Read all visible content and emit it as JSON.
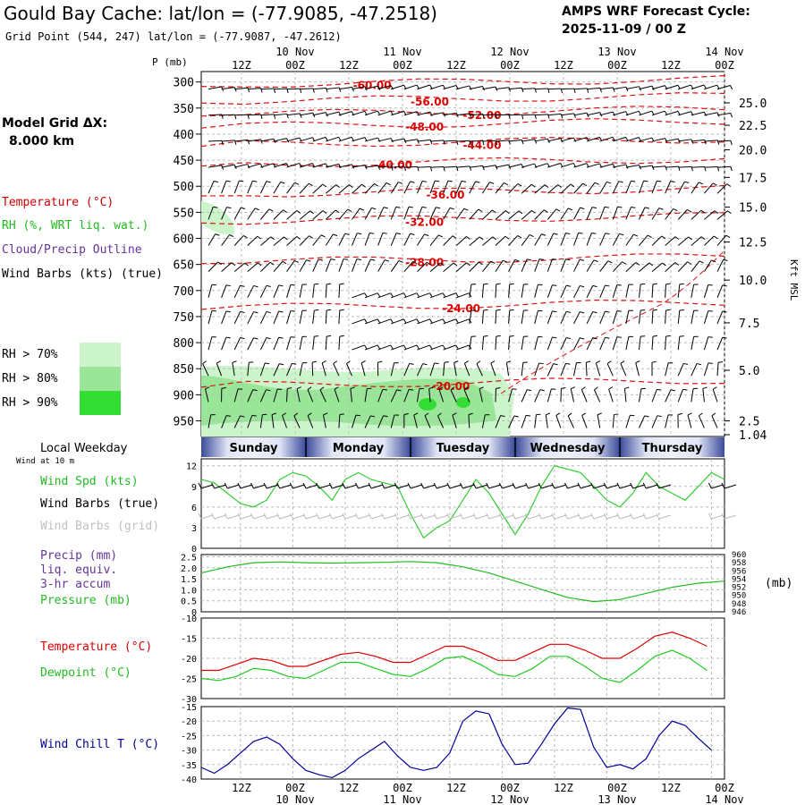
{
  "header": {
    "title": "Gould Bay Cache:  lat/lon = (-77.9085, -47.2518)",
    "subtitle": "Grid Point (544, 247) lat/lon = (-77.9087, -47.2612)",
    "forecast_cycle_label": "AMPS WRF Forecast Cycle:",
    "forecast_cycle_value": "2025-11-09 / 00  Z"
  },
  "legend": {
    "model_grid_label": "Model Grid ΔX:",
    "model_grid_value": "8.000 km",
    "temperature": "Temperature (°C)",
    "rh": "RH (%, WRT liq. wat.)",
    "cloud": "Cloud/Precip Outline",
    "wind_barbs": "Wind Barbs (kts) (true)",
    "rh70": "RH > 70%",
    "rh80": "RH > 80%",
    "rh90": "RH > 90%",
    "rh70_color": "#ccf5cc",
    "rh80_color": "#99e699",
    "rh90_color": "#33dd33"
  },
  "time_axis": {
    "labels": [
      "12Z",
      "00Z",
      "12Z",
      "00Z",
      "12Z",
      "00Z",
      "12Z",
      "00Z",
      "12Z",
      "00Z"
    ],
    "dates": [
      "10 Nov",
      "11 Nov",
      "12 Nov",
      "13 Nov",
      "14 Nov"
    ],
    "date_label_index": [
      1,
      3,
      5,
      7,
      9
    ]
  },
  "sounding": {
    "p_axis_label": "P (mb)",
    "kft_axis_label": "Kft MSL",
    "pressure_levels": [
      300,
      350,
      400,
      450,
      500,
      550,
      600,
      650,
      700,
      750,
      800,
      850,
      900,
      950
    ],
    "height_ticks": [
      {
        "label": "25.0",
        "p": 340
      },
      {
        "label": "22.5",
        "p": 383
      },
      {
        "label": "20.0",
        "p": 430
      },
      {
        "label": "17.5",
        "p": 483
      },
      {
        "label": "15.0",
        "p": 540
      },
      {
        "label": "12.5",
        "p": 607
      },
      {
        "label": "10.0",
        "p": 680
      },
      {
        "label": "7.5",
        "p": 762
      },
      {
        "label": "5.0",
        "p": 853
      },
      {
        "label": "2.5",
        "p": 950
      },
      {
        "label": "1.04",
        "p": 1010
      }
    ],
    "isotherms": [
      {
        "label": "-60.00",
        "t": 0.29,
        "p": 305
      },
      {
        "label": "-56.00",
        "t": 0.4,
        "p": 337
      },
      {
        "label": "-52.00",
        "t": 0.5,
        "p": 362
      },
      {
        "label": "-48.00",
        "t": 0.39,
        "p": 385
      },
      {
        "label": "-44.00",
        "t": 0.5,
        "p": 420
      },
      {
        "label": "-40.00",
        "t": 0.33,
        "p": 458
      },
      {
        "label": "-36.00",
        "t": 0.43,
        "p": 515
      },
      {
        "label": "-32.00",
        "t": 0.39,
        "p": 567
      },
      {
        "label": "-28.00",
        "t": 0.39,
        "p": 645
      },
      {
        "label": "-24.00",
        "t": 0.46,
        "p": 733
      },
      {
        "label": "-20.00",
        "t": 0.44,
        "p": 882
      }
    ]
  },
  "weekday_bar": {
    "title": "Local Weekday",
    "days": [
      "Sunday",
      "Monday",
      "Tuesday",
      "Wednesday",
      "Thursday"
    ]
  },
  "wind_panel": {
    "sub": "Wind at 10 m",
    "label_speed": "Wind Spd (kts)",
    "label_true": "Wind Barbs (true)",
    "label_grid": "Wind Barbs (grid)",
    "y_ticks": [
      "0",
      "3",
      "6",
      "9",
      "12"
    ],
    "speed_color": "#33cc33"
  },
  "pressure_panel": {
    "label_precip": "Precip (mm)",
    "label_liq": "liq. equiv.",
    "label_accum": "3-hr accum",
    "label_pressure": "Pressure (mb)",
    "unit_right": "(mb)",
    "left_ticks": [
      "0",
      "0.5",
      "1.0",
      "1.5",
      "2.0",
      "2.5"
    ],
    "right_ticks": [
      "946",
      "948",
      "950",
      "952",
      "954",
      "956",
      "958",
      "960"
    ]
  },
  "temp_panel": {
    "label_temp": "Temperature (°C)",
    "label_dew": "Dewpoint (°C)",
    "y_ticks": [
      "-30",
      "-25",
      "-20",
      "-15",
      "-10"
    ],
    "temp_color": "#dd0000",
    "dew_color": "#22cc22"
  },
  "chill_panel": {
    "label": "Wind Chill T (°C)",
    "y_ticks": [
      "-40",
      "-35",
      "-30",
      "-25",
      "-20",
      "-15"
    ],
    "color": "#000099"
  },
  "chart_data": [
    {
      "type": "line",
      "title": "Wind Spd (kts)",
      "x": [
        0,
        3,
        6,
        9,
        12,
        15,
        18,
        21,
        24,
        27,
        30,
        33,
        36,
        39,
        42,
        45,
        48,
        51,
        54,
        57,
        60,
        63,
        66,
        69,
        72,
        75,
        78,
        81,
        84,
        87,
        90,
        93,
        96,
        99,
        102,
        105,
        108,
        111,
        114,
        117,
        120
      ],
      "values": [
        10,
        9.5,
        8,
        6.5,
        6,
        7,
        10,
        11,
        10.5,
        9,
        7,
        10,
        11,
        10,
        9.5,
        9,
        5,
        1.5,
        3,
        4,
        7,
        10,
        8,
        5,
        2,
        5,
        9,
        12,
        11.5,
        11,
        9,
        7,
        6,
        8,
        11,
        9,
        8,
        7,
        9,
        11,
        10
      ],
      "ylim": [
        0,
        13
      ]
    },
    {
      "type": "line",
      "title": "Pressure (mb)",
      "x": [
        0,
        6,
        12,
        18,
        24,
        30,
        36,
        42,
        48,
        54,
        60,
        66,
        72,
        78,
        84,
        90,
        96,
        102,
        108,
        114,
        120
      ],
      "values": [
        955.5,
        957,
        958,
        958.2,
        958,
        957.9,
        958,
        958.1,
        958.3,
        958,
        957,
        955.5,
        953.5,
        951.5,
        949.5,
        948.5,
        949,
        950.5,
        952,
        953,
        953.5
      ],
      "ylim": [
        946,
        960
      ]
    },
    {
      "type": "line",
      "title": "Temperature (°C)",
      "series": [
        {
          "name": "Temperature (°C)",
          "values": [
            -23,
            -23,
            -21.5,
            -20,
            -20.5,
            -22,
            -22,
            -20.5,
            -19,
            -18.5,
            -19.5,
            -21,
            -21,
            -19,
            -17,
            -17,
            -18.5,
            -20.5,
            -20.5,
            -18.5,
            -16.5,
            -16.5,
            -18,
            -20,
            -20,
            -17.5,
            -14.5,
            -13.5,
            -15,
            -17
          ]
        },
        {
          "name": "Dewpoint (°C)",
          "values": [
            -25,
            -25.5,
            -24.5,
            -22.5,
            -23,
            -24.5,
            -25,
            -23,
            -21,
            -21,
            -22.5,
            -24,
            -24.5,
            -22.5,
            -20,
            -19.5,
            -21.5,
            -24,
            -24.5,
            -22.5,
            -19.5,
            -19.5,
            -22,
            -25,
            -26,
            -23,
            -19.5,
            -18,
            -20,
            -23
          ]
        }
      ],
      "x_step_hours": 4,
      "ylim": [
        -30,
        -10
      ]
    },
    {
      "type": "line",
      "title": "Wind Chill T (°C)",
      "values": [
        -36,
        -38,
        -35,
        -31,
        -27,
        -25.5,
        -28,
        -33,
        -37,
        -38.5,
        -39.5,
        -37,
        -33,
        -30,
        -27,
        -32,
        -36,
        -37,
        -36,
        -31,
        -20,
        -16.5,
        -17.5,
        -28,
        -35,
        -34.5,
        -28,
        -21,
        -15.5,
        -16,
        -29,
        -36,
        -35,
        -36.5,
        -33,
        -25,
        -20,
        -21.5,
        -26,
        -30
      ],
      "x_step_hours": 3,
      "ylim": [
        -40,
        -15
      ]
    }
  ]
}
